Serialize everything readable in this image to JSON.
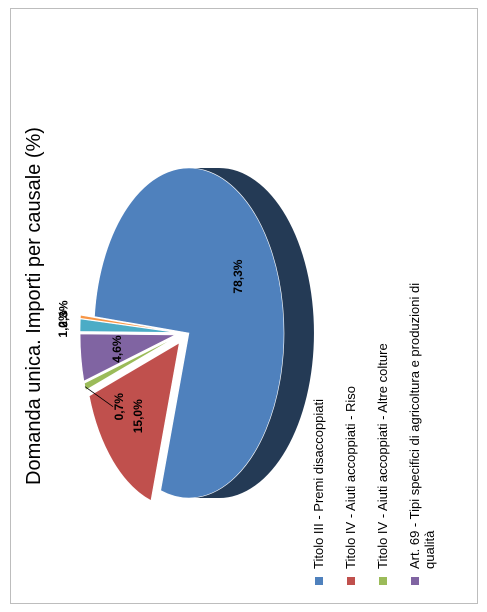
{
  "chart_data": {
    "type": "pie",
    "title": "Domanda unica. Importi per causale (%)",
    "legend_position": "bottom",
    "slices": [
      {
        "label": "Titolo III - Premi disaccoppiati",
        "value": 78.3,
        "value_label": "78,3%",
        "color": "#4f81bd"
      },
      {
        "label": "Titolo IV - Aiuti accoppiati - Riso",
        "value": 15.0,
        "value_label": "15,0%",
        "color": "#c0504d"
      },
      {
        "label": "Titolo IV - Aiuti accoppiati - Altre colture",
        "value": 0.7,
        "value_label": "0,7%",
        "color": "#9bbb59"
      },
      {
        "label": "Art. 69 - Tipi specifici di agricoltura e produzioni di qualità",
        "value": 4.6,
        "value_label": "4,6%",
        "color": "#8064a2"
      },
      {
        "label": "",
        "value": 1.2,
        "value_label": "1,2%",
        "color": "#4bacc6"
      },
      {
        "label": "",
        "value": 0.3,
        "value_label": "0,3%",
        "color": "#f79646"
      }
    ]
  }
}
